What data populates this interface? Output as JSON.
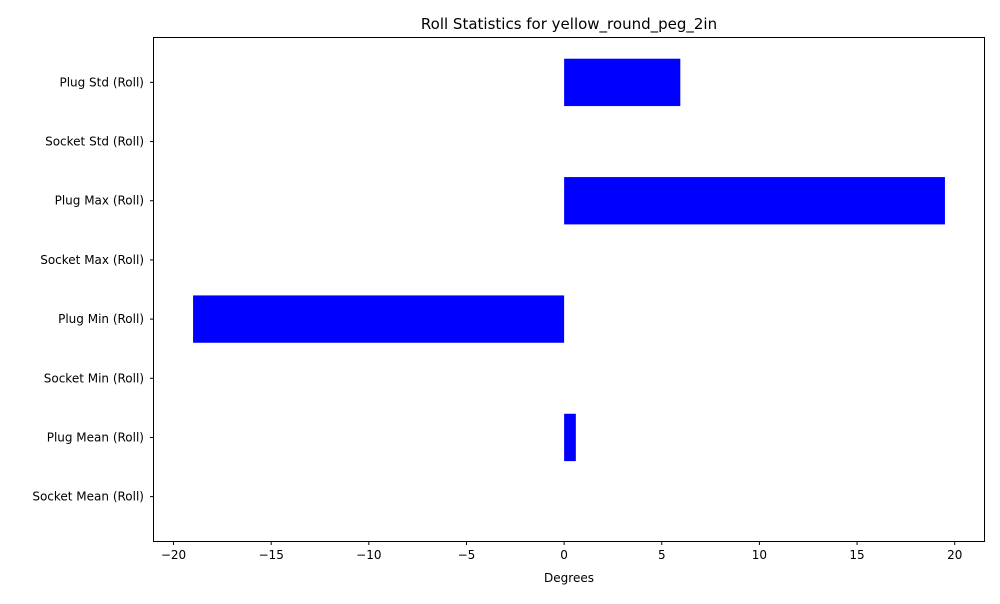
{
  "chart_data": {
    "type": "bar",
    "orientation": "horizontal",
    "title": "Roll Statistics for yellow_round_peg_2in",
    "xlabel": "Degrees",
    "ylabel": "",
    "xlim": [
      -21,
      21.5
    ],
    "xticks": [
      -20,
      -15,
      -10,
      -5,
      0,
      5,
      10,
      15,
      20
    ],
    "xtick_labels": [
      "−20",
      "−15",
      "−10",
      "−5",
      "0",
      "5",
      "10",
      "15",
      "20"
    ],
    "grid": false,
    "legend": "none",
    "bar_color": "#0000ff",
    "categories": [
      "Socket Mean (Roll)",
      "Plug Mean (Roll)",
      "Socket Min (Roll)",
      "Plug Min (Roll)",
      "Socket Max (Roll)",
      "Plug Max (Roll)",
      "Socket Std (Roll)",
      "Plug Std (Roll)"
    ],
    "values": [
      0,
      0.6,
      0,
      -19.0,
      0,
      19.5,
      0,
      5.95
    ]
  }
}
